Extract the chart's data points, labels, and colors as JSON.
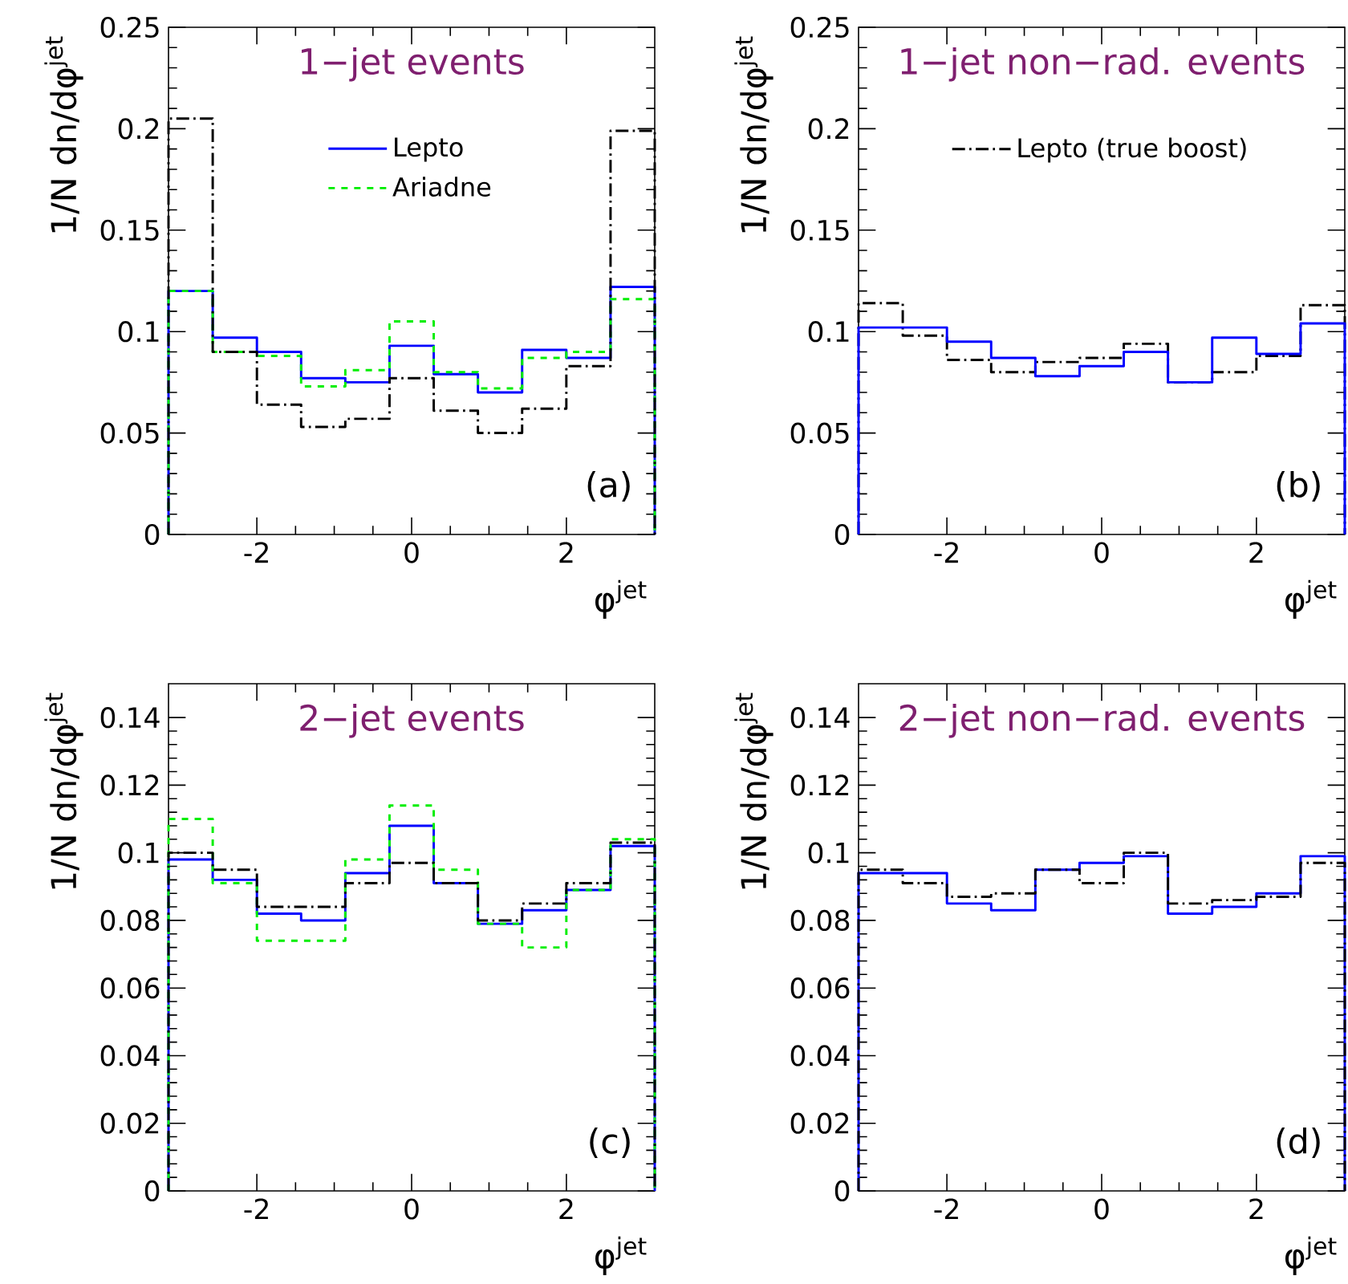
{
  "chart_data": [
    {
      "type": "histogram",
      "title": "1−jet events",
      "xlabel": "φ$^{jet}$",
      "ylabel": "1/N dn/dφ$^{jet}$",
      "annotations": [
        "(a)"
      ],
      "bins": [
        -3.1416,
        -2.5704,
        -1.9992,
        -1.428,
        -0.8568,
        -0.2856,
        0.2856,
        0.8568,
        1.428,
        1.9992,
        2.5704,
        3.1416
      ],
      "xlim": [
        -3.1416,
        3.1416
      ],
      "xticks": [
        -2,
        0,
        2
      ],
      "ylim": [
        0,
        0.25
      ],
      "yticks": [
        0,
        0.05,
        0.1,
        0.15,
        0.2,
        0.25
      ],
      "legend": "top",
      "series": [
        {
          "name": "Lepto",
          "color": "#0000ff",
          "line_style": "solid",
          "values": [
            0.12,
            0.097,
            0.09,
            0.077,
            0.075,
            0.093,
            0.079,
            0.07,
            0.091,
            0.087,
            0.122
          ]
        },
        {
          "name": "Ariadne",
          "color": "#00ee00",
          "line_style": "dashed",
          "values": [
            0.12,
            0.09,
            0.088,
            0.073,
            0.081,
            0.105,
            0.08,
            0.072,
            0.087,
            0.09,
            0.116
          ]
        },
        {
          "color": "#000000",
          "line_style": "dashdot",
          "values": [
            0.205,
            0.09,
            0.064,
            0.053,
            0.057,
            0.077,
            0.061,
            0.05,
            0.062,
            0.083,
            0.199
          ]
        }
      ]
    },
    {
      "type": "histogram",
      "title": "1−jet non−rad. events",
      "xlabel": "φ$^{jet}$",
      "ylabel": "1/N dn/dφ$^{jet}$",
      "annotations": [
        "(b)"
      ],
      "bins": [
        -3.1416,
        -2.5704,
        -1.9992,
        -1.428,
        -0.8568,
        -0.2856,
        0.2856,
        0.8568,
        1.428,
        1.9992,
        2.5704,
        3.1416
      ],
      "xlim": [
        -3.1416,
        3.1416
      ],
      "xticks": [
        -2,
        0,
        2
      ],
      "ylim": [
        0,
        0.25
      ],
      "yticks": [
        0,
        0.05,
        0.1,
        0.15,
        0.2,
        0.25
      ],
      "legend": "top",
      "series": [
        {
          "name": "Lepto (true boost)",
          "color": "#000000",
          "line_style": "dashdot",
          "values": [
            0.114,
            0.098,
            0.086,
            0.08,
            0.085,
            0.087,
            0.094,
            0.075,
            0.08,
            0.088,
            0.113
          ]
        },
        {
          "color": "#0000ff",
          "line_style": "solid",
          "values": [
            0.102,
            0.102,
            0.095,
            0.087,
            0.078,
            0.083,
            0.09,
            0.075,
            0.097,
            0.089,
            0.104
          ]
        }
      ]
    },
    {
      "type": "histogram",
      "title": "2−jet events",
      "xlabel": "φ$^{jet}$",
      "ylabel": "1/N dn/dφ$^{jet}$",
      "annotations": [
        "(c)"
      ],
      "bins": [
        -3.1416,
        -2.5704,
        -1.9992,
        -1.428,
        -0.8568,
        -0.2856,
        0.2856,
        0.8568,
        1.428,
        1.9992,
        2.5704,
        3.1416
      ],
      "xlim": [
        -3.1416,
        3.1416
      ],
      "xticks": [
        -2,
        0,
        2
      ],
      "ylim": [
        0,
        0.15
      ],
      "yticks": [
        0,
        0.02,
        0.04,
        0.06,
        0.08,
        0.1,
        0.12,
        0.14
      ],
      "series": [
        {
          "color": "#0000ff",
          "line_style": "solid",
          "values": [
            0.098,
            0.092,
            0.082,
            0.08,
            0.094,
            0.108,
            0.091,
            0.079,
            0.083,
            0.089,
            0.102
          ]
        },
        {
          "color": "#00ee00",
          "line_style": "dashed",
          "values": [
            0.11,
            0.091,
            0.074,
            0.074,
            0.098,
            0.114,
            0.095,
            0.079,
            0.072,
            0.089,
            0.104
          ]
        },
        {
          "color": "#000000",
          "line_style": "dashdot",
          "values": [
            0.1,
            0.095,
            0.084,
            0.084,
            0.091,
            0.097,
            0.091,
            0.08,
            0.085,
            0.091,
            0.103
          ]
        }
      ]
    },
    {
      "type": "histogram",
      "title": "2−jet non−rad. events",
      "xlabel": "φ$^{jet}$",
      "ylabel": "1/N dn/dφ$^{jet}$",
      "annotations": [
        "(d)"
      ],
      "bins": [
        -3.1416,
        -2.5704,
        -1.9992,
        -1.428,
        -0.8568,
        -0.2856,
        0.2856,
        0.8568,
        1.428,
        1.9992,
        2.5704,
        3.1416
      ],
      "xlim": [
        -3.1416,
        3.1416
      ],
      "xticks": [
        -2,
        0,
        2
      ],
      "ylim": [
        0,
        0.15
      ],
      "yticks": [
        0,
        0.02,
        0.04,
        0.06,
        0.08,
        0.1,
        0.12,
        0.14
      ],
      "series": [
        {
          "color": "#0000ff",
          "line_style": "solid",
          "values": [
            0.094,
            0.094,
            0.085,
            0.083,
            0.095,
            0.097,
            0.099,
            0.082,
            0.084,
            0.088,
            0.099
          ]
        },
        {
          "color": "#000000",
          "line_style": "dashdot",
          "values": [
            0.095,
            0.091,
            0.087,
            0.088,
            0.095,
            0.091,
            0.1,
            0.085,
            0.086,
            0.087,
            0.097
          ]
        }
      ]
    }
  ]
}
